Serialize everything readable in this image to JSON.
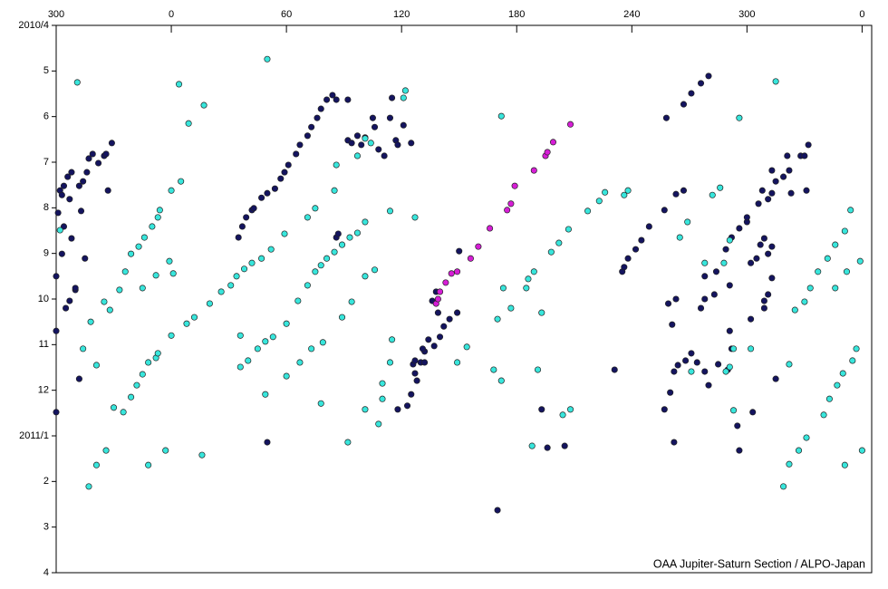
{
  "chart_data": {
    "type": "scatter",
    "annotation": "OAA Jupiter-Saturn Section / ALPO-Japan",
    "xlim": [
      -60,
      365
    ],
    "ylim": [
      12,
      0
    ],
    "xticks": [
      {
        "value": -60,
        "label": "300"
      },
      0,
      60,
      120,
      180,
      240,
      300,
      {
        "value": 360,
        "label": "0"
      }
    ],
    "yticks": [
      {
        "value": 0,
        "label": "2010/4"
      },
      {
        "value": 1,
        "label": "5"
      },
      {
        "value": 2,
        "label": "6"
      },
      {
        "value": 3,
        "label": "7"
      },
      {
        "value": 4,
        "label": "8"
      },
      {
        "value": 5,
        "label": "9"
      },
      {
        "value": 6,
        "label": "10"
      },
      {
        "value": 7,
        "label": "11"
      },
      {
        "value": 8,
        "label": "12"
      },
      {
        "value": 9,
        "label": "2011/1"
      },
      {
        "value": 10,
        "label": "2"
      },
      {
        "value": 11,
        "label": "3"
      },
      {
        "value": 12,
        "label": "4"
      }
    ],
    "grid": false,
    "series": [
      {
        "color": "#14145f",
        "x": [
          -58,
          -57,
          -56,
          -53,
          -54,
          -52,
          -48,
          -46,
          -44,
          -43,
          -41,
          -38,
          -35,
          -34,
          -31,
          -33,
          -47,
          -59,
          -60,
          -57,
          -52,
          -56,
          -55,
          -53,
          -50,
          -45,
          -50,
          -48,
          -60,
          -60,
          35,
          37,
          39,
          42,
          43,
          47,
          50,
          54,
          57,
          59,
          61,
          65,
          67,
          71,
          73,
          76,
          78,
          81,
          84,
          86,
          92,
          92,
          94,
          97,
          99,
          101,
          105,
          106,
          108,
          111,
          114,
          117,
          118,
          121,
          125,
          115,
          86,
          87,
          50,
          123,
          125,
          127,
          130,
          132,
          128,
          126,
          131,
          134,
          137,
          140,
          142,
          145,
          149,
          139,
          136,
          138,
          150,
          127,
          118,
          132,
          170,
          193,
          196,
          205,
          231,
          257,
          262,
          235,
          236,
          238,
          242,
          245,
          249,
          257,
          263,
          267,
          258,
          267,
          271,
          276,
          280,
          259,
          263,
          261,
          276,
          278,
          283,
          278,
          284,
          289,
          292,
          296,
          300,
          291,
          291,
          262,
          264,
          268,
          271,
          274,
          278,
          280,
          285,
          290,
          292,
          260,
          295,
          296,
          303,
          302,
          305,
          307,
          309,
          311,
          313,
          309,
          311,
          313,
          309,
          306,
          308,
          311,
          313,
          315,
          319,
          322,
          323,
          321,
          328,
          330,
          332,
          331,
          313,
          300,
          315,
          302
        ],
        "values": [
          3.62,
          3.72,
          3.52,
          3.81,
          3.32,
          3.22,
          3.52,
          3.42,
          3.22,
          2.92,
          2.82,
          3.02,
          2.86,
          2.82,
          2.58,
          3.62,
          4.07,
          4.11,
          5.5,
          5.01,
          4.67,
          4.41,
          6.2,
          6.04,
          5.8,
          5.11,
          5.76,
          7.75,
          8.48,
          6.7,
          4.65,
          4.41,
          4.21,
          4.05,
          4.01,
          3.78,
          3.68,
          3.58,
          3.36,
          3.22,
          3.06,
          2.82,
          2.62,
          2.42,
          2.23,
          2.03,
          1.83,
          1.63,
          1.53,
          1.63,
          1.63,
          2.52,
          2.58,
          2.42,
          2.62,
          2.46,
          2.03,
          2.23,
          2.72,
          2.86,
          2.03,
          2.52,
          2.62,
          2.19,
          2.58,
          1.59,
          4.65,
          4.57,
          9.14,
          8.34,
          8.09,
          7.63,
          7.39,
          7.15,
          7.79,
          7.43,
          7.09,
          6.89,
          7.03,
          6.83,
          6.6,
          6.44,
          6.3,
          6.3,
          6.04,
          5.84,
          4.95,
          7.35,
          8.42,
          7.39,
          10.63,
          8.42,
          9.26,
          9.22,
          7.55,
          8.42,
          9.14,
          5.4,
          5.3,
          5.11,
          4.91,
          4.71,
          4.41,
          4.05,
          3.7,
          3.62,
          2.03,
          1.73,
          1.49,
          1.27,
          1.11,
          6.1,
          6.0,
          6.56,
          6.2,
          6.0,
          5.9,
          5.5,
          5.4,
          4.91,
          4.65,
          4.45,
          4.31,
          5.7,
          6.7,
          7.59,
          7.45,
          7.35,
          7.19,
          7.39,
          7.59,
          7.89,
          7.43,
          7.55,
          7.09,
          8.05,
          8.78,
          9.32,
          8.48,
          5.21,
          5.11,
          4.81,
          4.67,
          5.01,
          4.85,
          6.04,
          5.9,
          5.54,
          6.2,
          3.91,
          3.62,
          3.81,
          3.68,
          3.42,
          3.32,
          3.18,
          3.68,
          2.86,
          2.86,
          2.86,
          2.62,
          3.62,
          3.18,
          4.21,
          7.75,
          6.44
        ]
      },
      {
        "color": "#38e6dc",
        "x": [
          -49,
          4,
          9,
          17,
          50,
          122,
          121,
          172,
          296,
          315,
          -58,
          -42,
          -32,
          -35,
          -27,
          -24,
          -21,
          -17,
          -14,
          -10,
          -7,
          -6,
          0,
          5,
          -8,
          -15,
          -1,
          1,
          -46,
          -39,
          -30,
          -34,
          -39,
          -43,
          -12,
          -3,
          16,
          -25,
          -21,
          -18,
          -15,
          -12,
          -8,
          -7,
          0,
          8,
          12,
          20,
          26,
          31,
          34,
          38,
          42,
          47,
          52,
          59,
          36,
          36,
          40,
          45,
          49,
          53,
          60,
          66,
          71,
          75,
          78,
          81,
          85,
          89,
          93,
          97,
          101,
          49,
          60,
          67,
          73,
          79,
          89,
          94,
          101,
          106,
          78,
          101,
          108,
          114,
          110,
          92,
          127,
          114,
          75,
          71,
          85,
          86,
          97,
          104,
          101,
          170,
          173,
          177,
          185,
          186,
          189,
          193,
          198,
          202,
          207,
          217,
          223,
          226,
          236,
          238,
          265,
          269,
          278,
          288,
          291,
          282,
          286,
          271,
          289,
          291,
          293,
          293,
          302,
          322,
          319,
          322,
          327,
          331,
          325,
          330,
          333,
          337,
          342,
          346,
          351,
          354,
          359,
          346,
          352,
          340,
          343,
          347,
          350,
          355,
          357,
          360,
          351,
          168,
          191,
          204,
          208,
          188,
          154,
          149,
          172,
          115,
          110
        ],
        "values": [
          1.25,
          1.29,
          2.15,
          1.75,
          0.74,
          1.43,
          1.59,
          1.99,
          2.03,
          1.23,
          4.49,
          6.5,
          6.24,
          6.06,
          5.8,
          5.4,
          5.01,
          4.85,
          4.65,
          4.41,
          4.21,
          4.05,
          3.62,
          3.42,
          5.48,
          5.76,
          5.17,
          5.44,
          7.09,
          7.45,
          8.38,
          9.32,
          9.64,
          10.11,
          9.64,
          9.32,
          9.42,
          8.48,
          8.15,
          7.89,
          7.65,
          7.39,
          7.29,
          7.19,
          6.8,
          6.54,
          6.4,
          6.1,
          5.84,
          5.7,
          5.5,
          5.34,
          5.21,
          5.11,
          4.91,
          4.57,
          6.8,
          7.49,
          7.35,
          7.09,
          6.93,
          6.83,
          6.54,
          6.04,
          5.7,
          5.4,
          5.26,
          5.11,
          4.97,
          4.81,
          4.65,
          4.55,
          4.31,
          8.09,
          7.69,
          7.39,
          7.09,
          6.95,
          6.4,
          6.06,
          5.5,
          5.36,
          8.29,
          8.42,
          8.74,
          7.39,
          8.19,
          9.14,
          4.21,
          4.07,
          4.01,
          4.21,
          3.62,
          3.06,
          2.86,
          2.58,
          2.48,
          6.44,
          5.76,
          6.2,
          5.76,
          5.56,
          5.4,
          6.3,
          4.97,
          4.77,
          4.47,
          4.07,
          3.85,
          3.66,
          3.72,
          3.62,
          4.65,
          4.31,
          5.21,
          5.21,
          4.71,
          3.72,
          3.56,
          7.59,
          7.59,
          7.49,
          7.09,
          8.44,
          7.09,
          7.43,
          10.11,
          9.62,
          9.32,
          9.04,
          6.24,
          6.06,
          5.76,
          5.4,
          5.11,
          4.81,
          4.51,
          4.05,
          5.17,
          5.76,
          5.4,
          8.54,
          8.19,
          7.89,
          7.63,
          7.35,
          7.09,
          9.32,
          9.64,
          7.55,
          7.55,
          8.54,
          8.42,
          9.22,
          7.05,
          7.39,
          7.79,
          6.89,
          7.85
        ]
      },
      {
        "color": "#d61ed6",
        "x": [
          138,
          140,
          143,
          146,
          149,
          156,
          160,
          166,
          175,
          177,
          179,
          189,
          195,
          196,
          199,
          208,
          139
        ],
        "values": [
          6.1,
          5.84,
          5.64,
          5.44,
          5.4,
          5.11,
          4.85,
          4.45,
          4.05,
          3.91,
          3.52,
          3.18,
          2.86,
          2.78,
          2.56,
          2.17,
          6.0
        ]
      }
    ]
  }
}
